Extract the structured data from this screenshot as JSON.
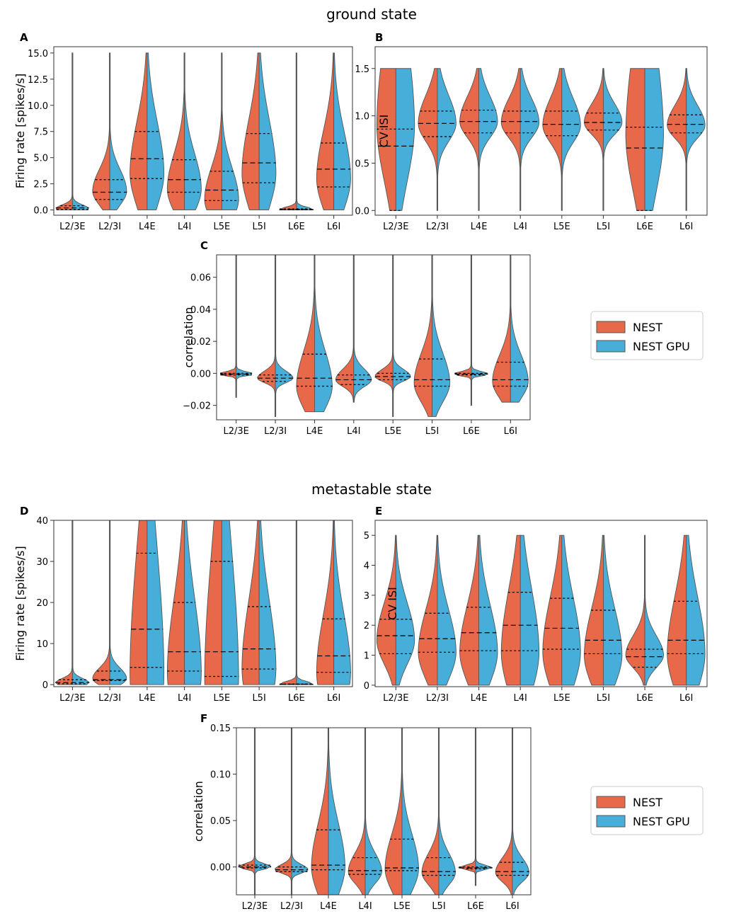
{
  "titles": {
    "ground": "ground state",
    "metastable": "metastable state"
  },
  "legend": {
    "nest": "NEST",
    "nest_gpu": "NEST GPU"
  },
  "colors": {
    "nest": "#e8694a",
    "nest_gpu": "#47aed9",
    "outline": "#555555"
  },
  "chart_data": [
    {
      "id": "A",
      "label": "A",
      "type": "violin",
      "split": true,
      "ylabel": "Firing rate [spikes/s]",
      "ylim": [
        -0.5,
        15.6
      ],
      "yticks": [
        0.0,
        2.5,
        5.0,
        7.5,
        10.0,
        12.5,
        15.0
      ],
      "yticklabels": [
        "0.0",
        "2.5",
        "5.0",
        "7.5",
        "10.0",
        "12.5",
        "15.0"
      ],
      "categories": [
        "L2/3E",
        "L2/3I",
        "L4E",
        "L4I",
        "L5E",
        "L5I",
        "L6E",
        "L6I"
      ],
      "series": [
        {
          "name": "L2/3E",
          "min": 0.0,
          "max": 15.0,
          "mode": 0.1,
          "q1": 0.05,
          "median": 0.2,
          "q3": 0.4
        },
        {
          "name": "L2/3I",
          "min": 0.0,
          "max": 15.0,
          "mode": 1.8,
          "q1": 1.0,
          "median": 1.7,
          "q3": 2.9
        },
        {
          "name": "L4E",
          "min": 0.0,
          "max": 15.0,
          "mode": 3.5,
          "q1": 3.0,
          "median": 4.9,
          "q3": 7.5
        },
        {
          "name": "L4I",
          "min": 0.0,
          "max": 15.0,
          "mode": 2.0,
          "q1": 1.7,
          "median": 2.9,
          "q3": 4.8
        },
        {
          "name": "L5E",
          "min": 0.0,
          "max": 15.0,
          "mode": 1.0,
          "q1": 0.9,
          "median": 1.9,
          "q3": 3.7
        },
        {
          "name": "L5I",
          "min": 0.0,
          "max": 15.0,
          "mode": 3.5,
          "q1": 2.6,
          "median": 4.5,
          "q3": 7.3
        },
        {
          "name": "L6E",
          "min": 0.0,
          "max": 15.0,
          "mode": 0.03,
          "q1": 0.02,
          "median": 0.05,
          "q3": 0.1
        },
        {
          "name": "L6I",
          "min": 0.0,
          "max": 15.0,
          "mode": 3.0,
          "q1": 2.2,
          "median": 3.9,
          "q3": 6.4
        }
      ]
    },
    {
      "id": "B",
      "label": "B",
      "type": "violin",
      "split": true,
      "ylabel": "CV ISI",
      "ylim": [
        -0.05,
        1.73
      ],
      "yticks": [
        0.0,
        0.5,
        1.0,
        1.5
      ],
      "yticklabels": [
        "0.0",
        "0.5",
        "1.0",
        "1.5"
      ],
      "categories": [
        "L2/3E",
        "L2/3I",
        "L4E",
        "L4I",
        "L5E",
        "L5I",
        "L6E",
        "L6I"
      ],
      "series": [
        {
          "name": "L2/3E",
          "min": 0.0,
          "max": 1.5,
          "mode": 0.9,
          "q1": 0.0,
          "median": 0.68,
          "q3": 0.86
        },
        {
          "name": "L2/3I",
          "min": 0.0,
          "max": 1.5,
          "mode": 0.92,
          "q1": 0.78,
          "median": 0.92,
          "q3": 1.05
        },
        {
          "name": "L4E",
          "min": 0.0,
          "max": 1.5,
          "mode": 0.94,
          "q1": 0.82,
          "median": 0.94,
          "q3": 1.06
        },
        {
          "name": "L4I",
          "min": 0.0,
          "max": 1.5,
          "mode": 0.93,
          "q1": 0.82,
          "median": 0.94,
          "q3": 1.05
        },
        {
          "name": "L5E",
          "min": 0.0,
          "max": 1.5,
          "mode": 0.9,
          "q1": 0.79,
          "median": 0.91,
          "q3": 1.05
        },
        {
          "name": "L5I",
          "min": 0.0,
          "max": 1.5,
          "mode": 0.93,
          "q1": 0.85,
          "median": 0.93,
          "q3": 1.03
        },
        {
          "name": "L6E",
          "min": 0.0,
          "max": 1.5,
          "mode": 0.8,
          "q1": 0.0,
          "median": 0.66,
          "q3": 0.88
        },
        {
          "name": "L6I",
          "min": 0.0,
          "max": 1.5,
          "mode": 0.9,
          "q1": 0.82,
          "median": 0.91,
          "q3": 1.01
        }
      ]
    },
    {
      "id": "C",
      "label": "C",
      "type": "violin",
      "split": true,
      "ylabel": "correlation",
      "ylim": [
        -0.029,
        0.074
      ],
      "yticks": [
        -0.02,
        0.0,
        0.02,
        0.04,
        0.06
      ],
      "yticklabels": [
        "−0.02",
        "0.00",
        "0.02",
        "0.04",
        "0.06"
      ],
      "categories": [
        "L2/3E",
        "L2/3I",
        "L4E",
        "L4I",
        "L5E",
        "L5I",
        "L6E",
        "L6I"
      ],
      "series": [
        {
          "name": "L2/3E",
          "min": -0.015,
          "max": 0.074,
          "mode": -0.0005,
          "q1": -0.001,
          "median": -0.0005,
          "q3": 0.0
        },
        {
          "name": "L2/3I",
          "min": -0.027,
          "max": 0.074,
          "mode": -0.003,
          "q1": -0.005,
          "median": -0.003,
          "q3": -0.001
        },
        {
          "name": "L4E",
          "min": -0.024,
          "max": 0.074,
          "mode": -0.008,
          "q1": -0.008,
          "median": -0.003,
          "q3": 0.012
        },
        {
          "name": "L4I",
          "min": -0.018,
          "max": 0.074,
          "mode": -0.004,
          "q1": -0.007,
          "median": -0.004,
          "q3": -0.001
        },
        {
          "name": "L5E",
          "min": -0.027,
          "max": 0.074,
          "mode": -0.002,
          "q1": -0.004,
          "median": -0.002,
          "q3": 0.0
        },
        {
          "name": "L5I",
          "min": -0.027,
          "max": 0.074,
          "mode": -0.006,
          "q1": -0.008,
          "median": -0.004,
          "q3": 0.009
        },
        {
          "name": "L6E",
          "min": -0.02,
          "max": 0.074,
          "mode": -0.0005,
          "q1": -0.001,
          "median": -0.0005,
          "q3": 0.0
        },
        {
          "name": "L6I",
          "min": -0.018,
          "max": 0.074,
          "mode": -0.005,
          "q1": -0.008,
          "median": -0.004,
          "q3": 0.007
        }
      ]
    },
    {
      "id": "D",
      "label": "D",
      "type": "violin",
      "split": true,
      "ylabel": "Firing rate [spikes/s]",
      "ylim": [
        -0.5,
        40
      ],
      "yticks": [
        0,
        10,
        20,
        30,
        40
      ],
      "yticklabels": [
        "0",
        "10",
        "20",
        "30",
        "40"
      ],
      "categories": [
        "L2/3E",
        "L2/3I",
        "L4E",
        "L4I",
        "L5E",
        "L5I",
        "L6E",
        "L6I"
      ],
      "series": [
        {
          "name": "L2/3E",
          "min": 0.0,
          "max": 40,
          "mode": 0.4,
          "q1": 0.2,
          "median": 0.5,
          "q3": 1.2
        },
        {
          "name": "L2/3I",
          "min": 0.0,
          "max": 40,
          "mode": 1.5,
          "q1": 1.0,
          "median": 1.2,
          "q3": 3.3
        },
        {
          "name": "L4E",
          "min": 0.0,
          "max": 40,
          "mode": 3.0,
          "q1": 4.2,
          "median": 13.5,
          "q3": 32.0
        },
        {
          "name": "L4I",
          "min": 0.0,
          "max": 40,
          "mode": 3.0,
          "q1": 3.3,
          "median": 8.0,
          "q3": 20.0
        },
        {
          "name": "L5E",
          "min": 0.0,
          "max": 40,
          "mode": 2.0,
          "q1": 2.0,
          "median": 8.0,
          "q3": 30.0
        },
        {
          "name": "L5I",
          "min": 0.0,
          "max": 40,
          "mode": 4.0,
          "q1": 3.8,
          "median": 8.7,
          "q3": 19.0
        },
        {
          "name": "L6E",
          "min": 0.0,
          "max": 40,
          "mode": 0.1,
          "q1": 0.05,
          "median": 0.1,
          "q3": 0.15
        },
        {
          "name": "L6I",
          "min": 0.0,
          "max": 40,
          "mode": 3.0,
          "q1": 3.0,
          "median": 7.0,
          "q3": 16.0
        }
      ]
    },
    {
      "id": "E",
      "label": "E",
      "type": "violin",
      "split": true,
      "ylabel": "CV ISI",
      "ylim": [
        -0.05,
        5.5
      ],
      "yticks": [
        0,
        1,
        2,
        3,
        4,
        5
      ],
      "yticklabels": [
        "0",
        "1",
        "2",
        "3",
        "4",
        "5"
      ],
      "categories": [
        "L2/3E",
        "L2/3I",
        "L4E",
        "L4I",
        "L5E",
        "L5I",
        "L6E",
        "L6I"
      ],
      "series": [
        {
          "name": "L2/3E",
          "min": 0.0,
          "max": 5.0,
          "mode": 1.5,
          "q1": 1.05,
          "median": 1.65,
          "q3": 2.2
        },
        {
          "name": "L2/3I",
          "min": 0.0,
          "max": 5.0,
          "mode": 1.1,
          "q1": 1.1,
          "median": 1.55,
          "q3": 2.4
        },
        {
          "name": "L4E",
          "min": 0.0,
          "max": 5.0,
          "mode": 1.1,
          "q1": 1.15,
          "median": 1.75,
          "q3": 2.6
        },
        {
          "name": "L4I",
          "min": 0.0,
          "max": 5.0,
          "mode": 1.1,
          "q1": 1.15,
          "median": 2.0,
          "q3": 3.1
        },
        {
          "name": "L5E",
          "min": 0.0,
          "max": 5.0,
          "mode": 1.1,
          "q1": 1.2,
          "median": 1.9,
          "q3": 2.9
        },
        {
          "name": "L5I",
          "min": 0.0,
          "max": 5.0,
          "mode": 1.0,
          "q1": 1.05,
          "median": 1.5,
          "q3": 2.5
        },
        {
          "name": "L6E",
          "min": 0.0,
          "max": 5.0,
          "mode": 1.0,
          "q1": 0.6,
          "median": 0.95,
          "q3": 1.2
        },
        {
          "name": "L6I",
          "min": 0.0,
          "max": 5.0,
          "mode": 1.05,
          "q1": 1.05,
          "median": 1.5,
          "q3": 2.8
        }
      ]
    },
    {
      "id": "F",
      "label": "F",
      "type": "violin",
      "split": true,
      "ylabel": "correlation",
      "ylim": [
        -0.03,
        0.15
      ],
      "yticks": [
        0.0,
        0.05,
        0.1,
        0.15
      ],
      "yticklabels": [
        "0.00",
        "0.05",
        "0.10",
        "0.15"
      ],
      "categories": [
        "L2/3E",
        "L2/3I",
        "L4E",
        "L4I",
        "L5E",
        "L5I",
        "L6E",
        "L6I"
      ],
      "series": [
        {
          "name": "L2/3E",
          "min": -0.03,
          "max": 0.15,
          "mode": 0.0,
          "q1": -0.001,
          "median": 0.0,
          "q3": 0.002
        },
        {
          "name": "L2/3I",
          "min": -0.03,
          "max": 0.15,
          "mode": -0.003,
          "q1": -0.005,
          "median": -0.003,
          "q3": 0.0
        },
        {
          "name": "L4E",
          "min": -0.03,
          "max": 0.15,
          "mode": 0.0,
          "q1": -0.003,
          "median": 0.002,
          "q3": 0.04
        },
        {
          "name": "L4I",
          "min": -0.03,
          "max": 0.15,
          "mode": -0.005,
          "q1": -0.008,
          "median": -0.004,
          "q3": 0.01
        },
        {
          "name": "L5E",
          "min": -0.03,
          "max": 0.15,
          "mode": -0.002,
          "q1": -0.004,
          "median": -0.001,
          "q3": 0.03
        },
        {
          "name": "L5I",
          "min": -0.03,
          "max": 0.15,
          "mode": -0.006,
          "q1": -0.009,
          "median": -0.005,
          "q3": 0.01
        },
        {
          "name": "L6E",
          "min": -0.02,
          "max": 0.15,
          "mode": -0.001,
          "q1": -0.002,
          "median": -0.001,
          "q3": 0.0
        },
        {
          "name": "L6I",
          "min": -0.03,
          "max": 0.15,
          "mode": -0.006,
          "q1": -0.009,
          "median": -0.005,
          "q3": 0.005
        }
      ]
    }
  ]
}
